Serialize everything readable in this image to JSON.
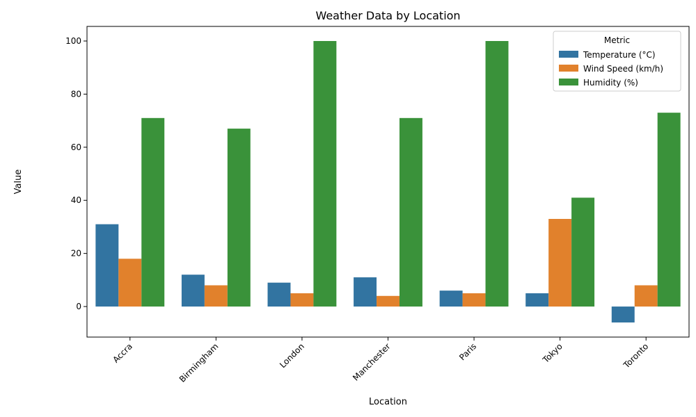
{
  "chart_data": {
    "type": "bar",
    "title": "Weather Data by Location",
    "xlabel": "Location",
    "ylabel": "Value",
    "ylim": [
      -11.5,
      105.5
    ],
    "yticks": [
      0,
      20,
      40,
      60,
      80,
      100
    ],
    "categories": [
      "Accra",
      "Birmingham",
      "London",
      "Manchester",
      "Paris",
      "Tokyo",
      "Toronto"
    ],
    "series": [
      {
        "name": "Temperature (°C)",
        "color": "#3274a1",
        "values": [
          31,
          12,
          9,
          11,
          6,
          5,
          -6
        ]
      },
      {
        "name": "Wind Speed (km/h)",
        "color": "#e1812c",
        "values": [
          18,
          8,
          5,
          4,
          5,
          33,
          8
        ]
      },
      {
        "name": "Humidity (%)",
        "color": "#3a923a",
        "values": [
          71,
          67,
          100,
          71,
          100,
          41,
          73
        ]
      }
    ],
    "legend": {
      "title": "Metric",
      "placement": "top-right"
    },
    "grid": false
  }
}
